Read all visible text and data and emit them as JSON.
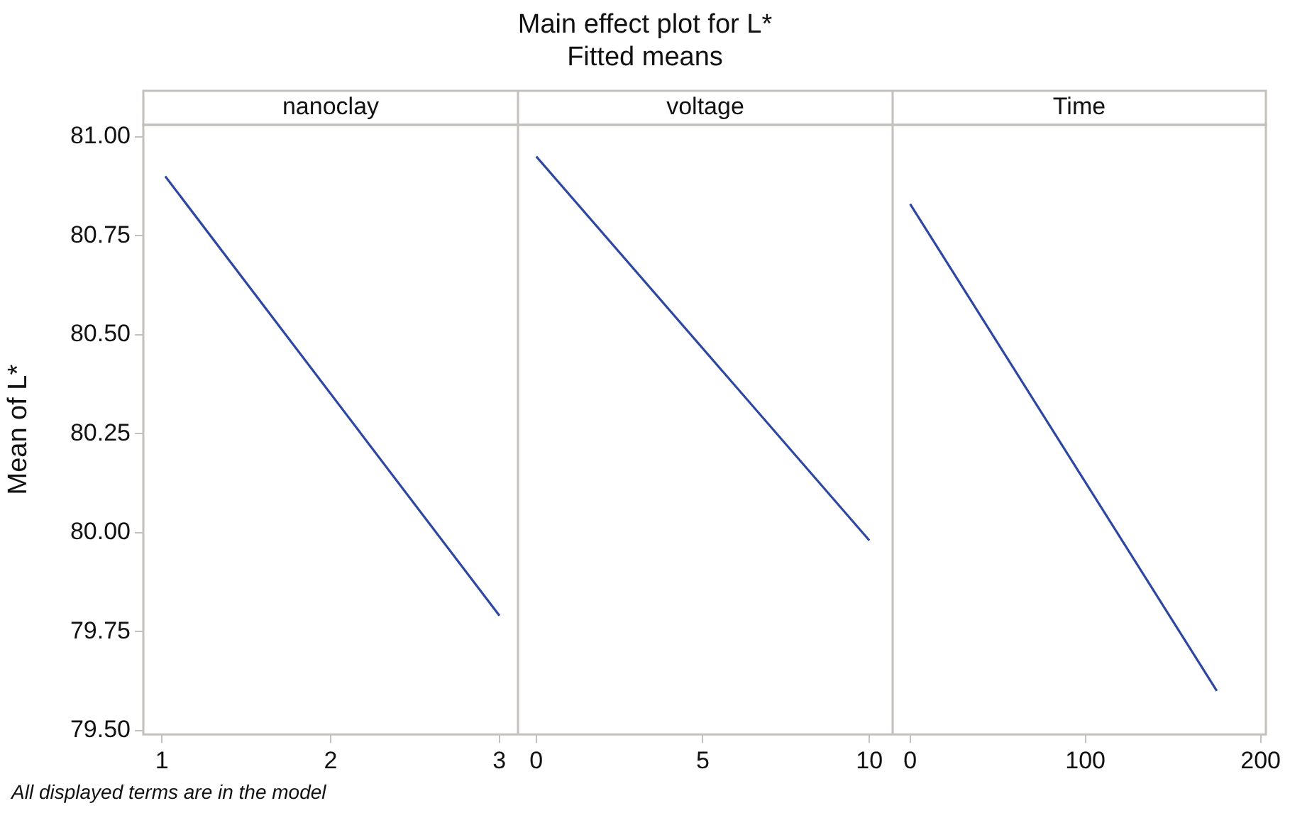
{
  "chart_data": [
    {
      "type": "line",
      "title": "nanoclay",
      "ylabel": "Mean of L*",
      "annotations": [
        "Main effect plot for L*",
        "Fitted means",
        "All displayed terms are in the model"
      ],
      "x": [
        1.02,
        3
      ],
      "values": [
        80.9,
        79.79
      ],
      "color": "#2e47a0",
      "marker": "none",
      "xlim": [
        0.89,
        3.11
      ],
      "xticks": [
        1,
        2,
        3
      ],
      "ylim": [
        79.49,
        81.03
      ],
      "yticks": [
        {
          "value": 79.5,
          "label": "79.50"
        },
        {
          "value": 79.75,
          "label": "79.75"
        },
        {
          "value": 80,
          "label": "80.00"
        },
        {
          "value": 80.25,
          "label": "80.25"
        },
        {
          "value": 80.5,
          "label": "80.50"
        },
        {
          "value": 80.75,
          "label": "80.75"
        },
        {
          "value": 81,
          "label": "81.00"
        }
      ]
    },
    {
      "type": "line",
      "title": "voltage",
      "x": [
        0,
        10
      ],
      "values": [
        80.95,
        79.98
      ],
      "color": "#2e47a0",
      "marker": "none",
      "xlim": [
        -0.55,
        10.7
      ],
      "xticks": [
        0,
        5,
        10
      ],
      "ylim": [
        79.49,
        81.03
      ],
      "tick_labels": "x"
    },
    {
      "type": "line",
      "title": "Time",
      "x": [
        0,
        175
      ],
      "values": [
        80.83,
        79.6
      ],
      "color": "#2e47a0",
      "marker": "none",
      "xlim": [
        -10,
        203
      ],
      "xticks": [
        0,
        100,
        200
      ],
      "ylim": [
        79.49,
        81.03
      ],
      "tick_labels": "x"
    }
  ]
}
